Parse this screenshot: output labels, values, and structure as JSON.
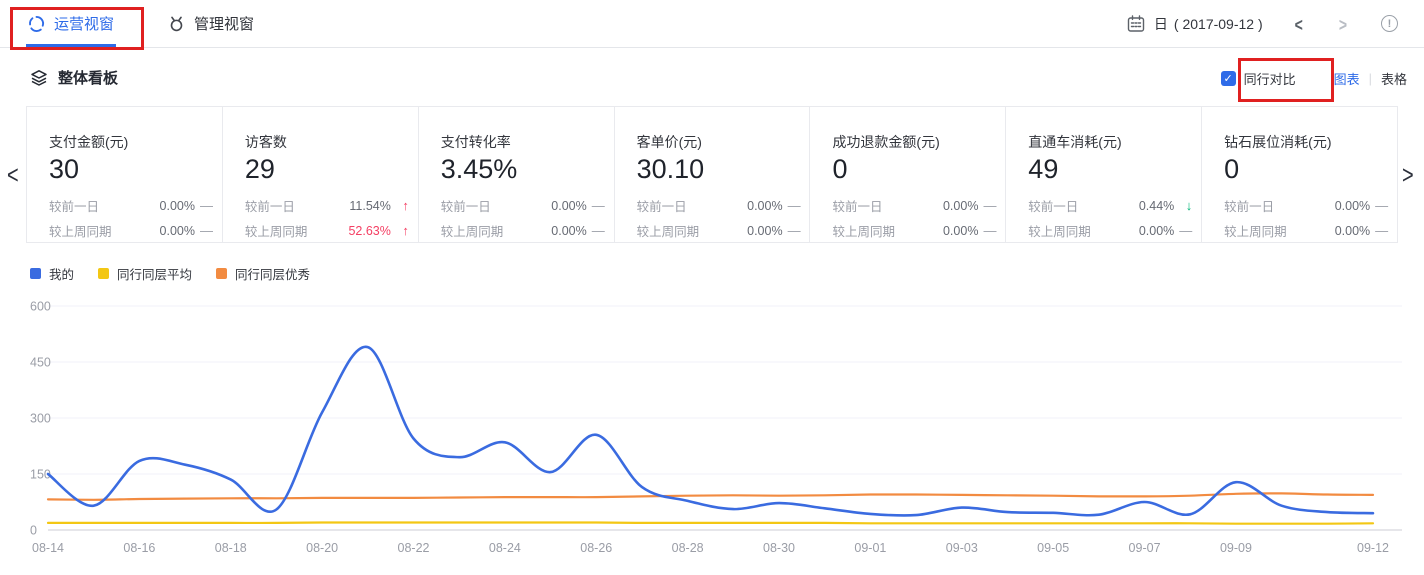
{
  "header": {
    "tabs": [
      {
        "label": "运营视窗",
        "active": true
      },
      {
        "label": "管理视窗",
        "active": false
      }
    ],
    "date_label": "日",
    "date_value": "( 2017-09-12 )"
  },
  "glyphs": {
    "check": "✓",
    "chevron_left": "<",
    "chevron_right": ">",
    "info": "!",
    "up": "↑",
    "down": "↓",
    "flat": "—"
  },
  "toolbar": {
    "section_title": "整体看板",
    "peer_compare_label": "同行对比",
    "peer_compare_checked": true,
    "view_chart_label": "图表",
    "view_toggle_separator": "|",
    "view_table_label": "表格"
  },
  "annotation_boxes": [
    {
      "target": "tab-operations",
      "color": "#e02020"
    },
    {
      "target": "peer-compare-checkbox",
      "color": "#e02020"
    }
  ],
  "cards": [
    {
      "title": "支付金额(元)",
      "value": "30",
      "rows": [
        {
          "label": "较前一日",
          "value": "0.00%",
          "trend": "flat",
          "highlight": false
        },
        {
          "label": "较上周同期",
          "value": "0.00%",
          "trend": "flat",
          "highlight": false
        }
      ]
    },
    {
      "title": "访客数",
      "value": "29",
      "rows": [
        {
          "label": "较前一日",
          "value": "11.54%",
          "trend": "up",
          "highlight": false
        },
        {
          "label": "较上周同期",
          "value": "52.63%",
          "trend": "up",
          "highlight": true
        }
      ]
    },
    {
      "title": "支付转化率",
      "value": "3.45%",
      "rows": [
        {
          "label": "较前一日",
          "value": "0.00%",
          "trend": "flat",
          "highlight": false
        },
        {
          "label": "较上周同期",
          "value": "0.00%",
          "trend": "flat",
          "highlight": false
        }
      ]
    },
    {
      "title": "客单价(元)",
      "value": "30.10",
      "rows": [
        {
          "label": "较前一日",
          "value": "0.00%",
          "trend": "flat",
          "highlight": false
        },
        {
          "label": "较上周同期",
          "value": "0.00%",
          "trend": "flat",
          "highlight": false
        }
      ]
    },
    {
      "title": "成功退款金额(元)",
      "value": "0",
      "rows": [
        {
          "label": "较前一日",
          "value": "0.00%",
          "trend": "flat",
          "highlight": false
        },
        {
          "label": "较上周同期",
          "value": "0.00%",
          "trend": "flat",
          "highlight": false
        }
      ]
    },
    {
      "title": "直通车消耗(元)",
      "value": "49",
      "rows": [
        {
          "label": "较前一日",
          "value": "0.44%",
          "trend": "down",
          "highlight": false
        },
        {
          "label": "较上周同期",
          "value": "0.00%",
          "trend": "flat",
          "highlight": false
        }
      ]
    },
    {
      "title": "钻石展位消耗(元)",
      "value": "0",
      "rows": [
        {
          "label": "较前一日",
          "value": "0.00%",
          "trend": "flat",
          "highlight": false
        },
        {
          "label": "较上周同期",
          "value": "0.00%",
          "trend": "flat",
          "highlight": false
        }
      ]
    }
  ],
  "chart_data": {
    "type": "line",
    "smooth": true,
    "grid": true,
    "legend_position": "top-left",
    "ylim": [
      0,
      600
    ],
    "yticks": [
      0,
      150,
      300,
      450,
      600
    ],
    "x": [
      "08-14",
      "08-15",
      "08-16",
      "08-17",
      "08-18",
      "08-19",
      "08-20",
      "08-21",
      "08-22",
      "08-23",
      "08-24",
      "08-25",
      "08-26",
      "08-27",
      "08-28",
      "08-29",
      "08-30",
      "08-31",
      "09-01",
      "09-02",
      "09-03",
      "09-04",
      "09-05",
      "09-06",
      "09-07",
      "09-08",
      "09-09",
      "09-10",
      "09-11",
      "09-12"
    ],
    "x_tick_indices": [
      0,
      2,
      4,
      6,
      8,
      10,
      12,
      14,
      16,
      18,
      20,
      22,
      24,
      26,
      29
    ],
    "series": [
      {
        "name": "我的",
        "color": "#3a6be0",
        "values": [
          150,
          65,
          185,
          175,
          135,
          55,
          315,
          490,
          245,
          195,
          235,
          155,
          255,
          115,
          78,
          56,
          72,
          58,
          43,
          40,
          60,
          48,
          46,
          41,
          75,
          42,
          128,
          65,
          48,
          45
        ]
      },
      {
        "name": "同行同层平均",
        "color": "#f3c714",
        "values": [
          19,
          19,
          19,
          19,
          19,
          19,
          20,
          20,
          20,
          20,
          20,
          20,
          20,
          19,
          19,
          19,
          19,
          19,
          18,
          18,
          18,
          18,
          18,
          18,
          18,
          18,
          17,
          17,
          17,
          18
        ]
      },
      {
        "name": "同行同层优秀",
        "color": "#f28b41",
        "values": [
          82,
          81,
          83,
          84,
          85,
          85,
          86,
          86,
          86,
          87,
          88,
          88,
          88,
          90,
          92,
          93,
          92,
          93,
          95,
          95,
          94,
          93,
          92,
          90,
          90,
          92,
          97,
          98,
          95,
          94
        ]
      }
    ]
  }
}
